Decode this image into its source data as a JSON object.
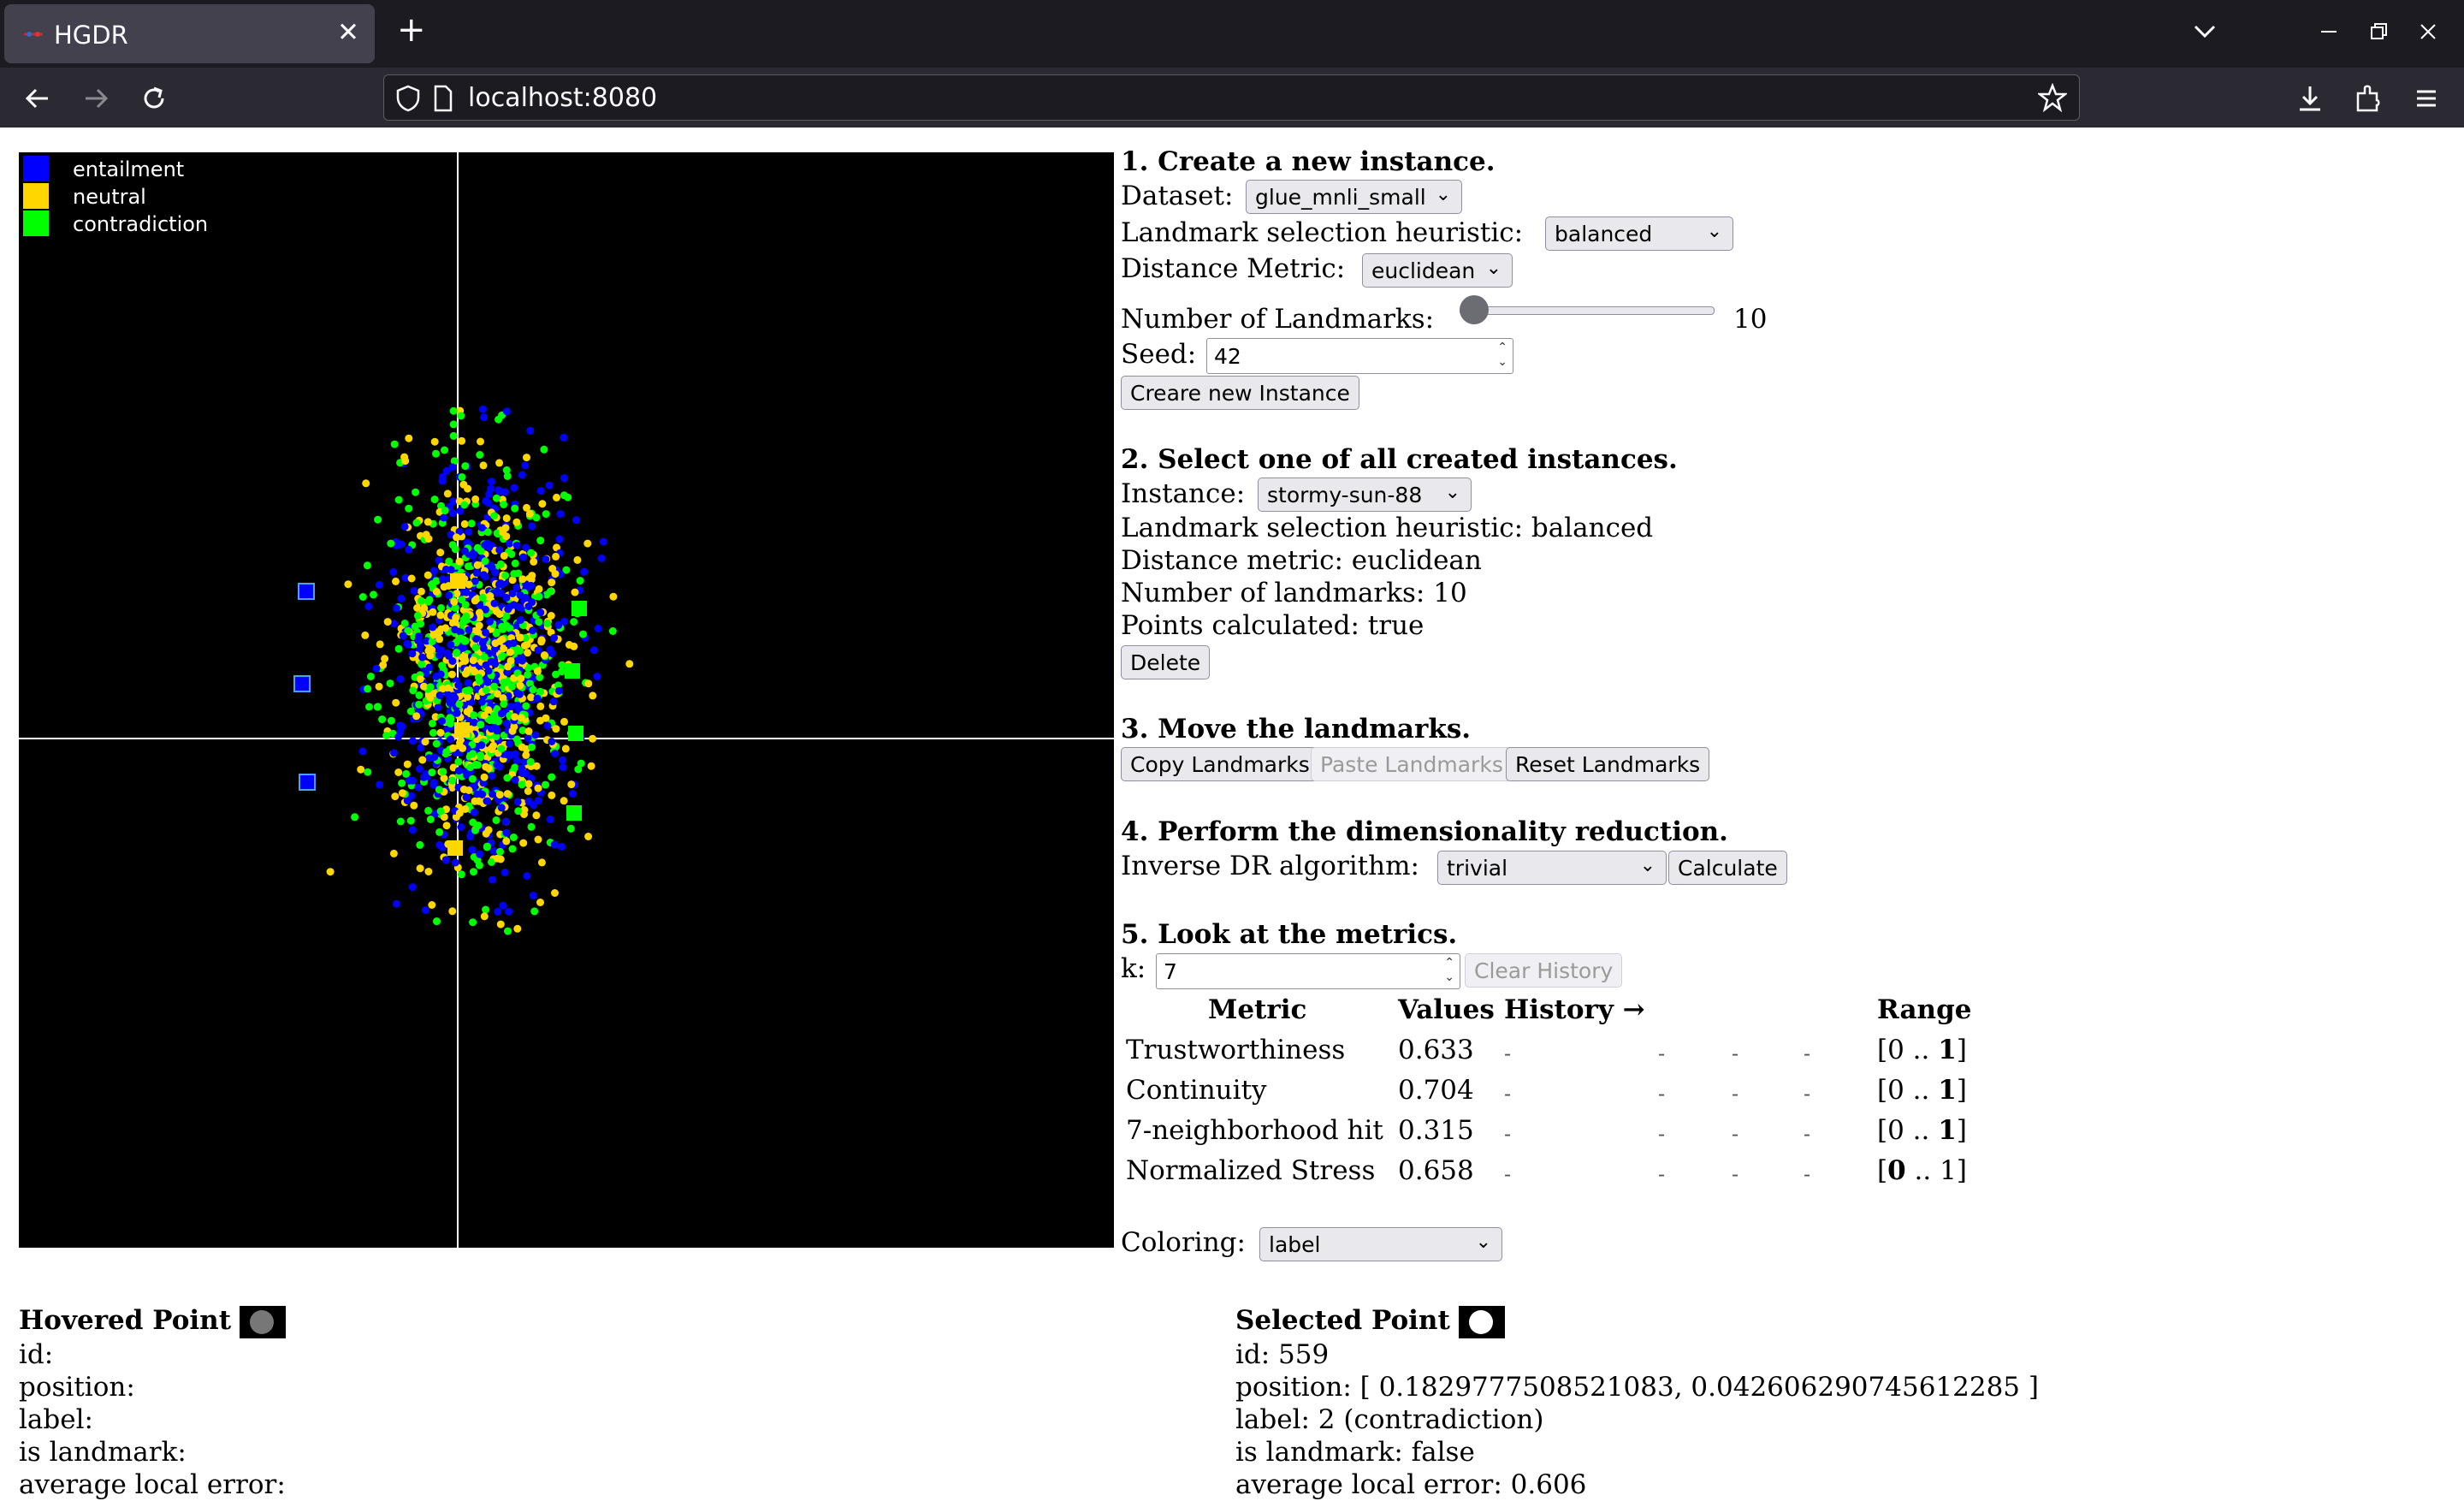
{
  "browser": {
    "tab_title": "HGDR",
    "url": "localhost:8080"
  },
  "legend": [
    {
      "label": "entailment",
      "color": "#0000ff"
    },
    {
      "label": "neutral",
      "color": "#ffd700"
    },
    {
      "label": "contradiction",
      "color": "#00ff00"
    }
  ],
  "section1": {
    "heading": "1. Create a new instance.",
    "dataset_label": "Dataset:",
    "dataset_value": "glue_mnli_small",
    "heuristic_label": "Landmark selection heuristic:",
    "heuristic_value": "balanced",
    "metric_label": "Distance Metric:",
    "metric_value": "euclidean",
    "landmarks_label": "Number of Landmarks:",
    "landmarks_value": "10",
    "seed_label": "Seed:",
    "seed_value": "42",
    "create_button": "Creare new Instance"
  },
  "section2": {
    "heading": "2. Select one of all created instances.",
    "instance_label": "Instance:",
    "instance_value": "stormy-sun-88",
    "info_heuristic": "Landmark selection heuristic: balanced",
    "info_metric": "Distance metric: euclidean",
    "info_landmarks": "Number of landmarks: 10",
    "info_points": "Points calculated: true",
    "delete_button": "Delete"
  },
  "section3": {
    "heading": "3. Move the landmarks.",
    "copy_button": "Copy Landmarks",
    "paste_button": "Paste Landmarks",
    "reset_button": "Reset Landmarks"
  },
  "section4": {
    "heading": "4. Perform the dimensionality reduction.",
    "algo_label": "Inverse DR algorithm:",
    "algo_value": "trivial",
    "calculate_button": "Calculate"
  },
  "section5": {
    "heading": "5. Look at the metrics.",
    "k_label": "k:",
    "k_value": "7",
    "clear_button": "Clear History",
    "table_headers": [
      "Metric",
      "Values",
      "History →",
      "Range"
    ],
    "rows": [
      {
        "name": "Trustworthiness",
        "value": "0.633",
        "history": [
          "-",
          "-",
          "-",
          "-"
        ],
        "range_pre": "[0 .. ",
        "range_bold": "1",
        "range_post": "]",
        "bold_first": false
      },
      {
        "name": "Continuity",
        "value": "0.704",
        "history": [
          "-",
          "-",
          "-",
          "-"
        ],
        "range_pre": "[0 .. ",
        "range_bold": "1",
        "range_post": "]",
        "bold_first": false
      },
      {
        "name": "7-neighborhood hit",
        "value": "0.315",
        "history": [
          "-",
          "-",
          "-",
          "-"
        ],
        "range_pre": "[0 .. ",
        "range_bold": "1",
        "range_post": "]",
        "bold_first": false
      },
      {
        "name": "Normalized Stress",
        "value": "0.658",
        "history": [
          "-",
          "-",
          "-",
          "-"
        ],
        "range_pre": "[",
        "range_bold": "0",
        "range_post": " .. 1]",
        "bold_first": true
      }
    ]
  },
  "coloring": {
    "label": "Coloring:",
    "value": "label"
  },
  "hovered": {
    "heading": "Hovered Point",
    "dot_color": "#777777",
    "id": "id:",
    "position": "position:",
    "label": "label:",
    "is_landmark": "is landmark:",
    "avg_error": "average local error:"
  },
  "selected": {
    "heading": "Selected Point",
    "dot_color": "#ffffff",
    "id": "id: 559",
    "position": "position: [ 0.1829777508521083, 0.042606290745612285 ]",
    "label": "label: 2 (contradiction)",
    "is_landmark": "is landmark: false",
    "avg_error": "average local error: 0.606"
  }
}
